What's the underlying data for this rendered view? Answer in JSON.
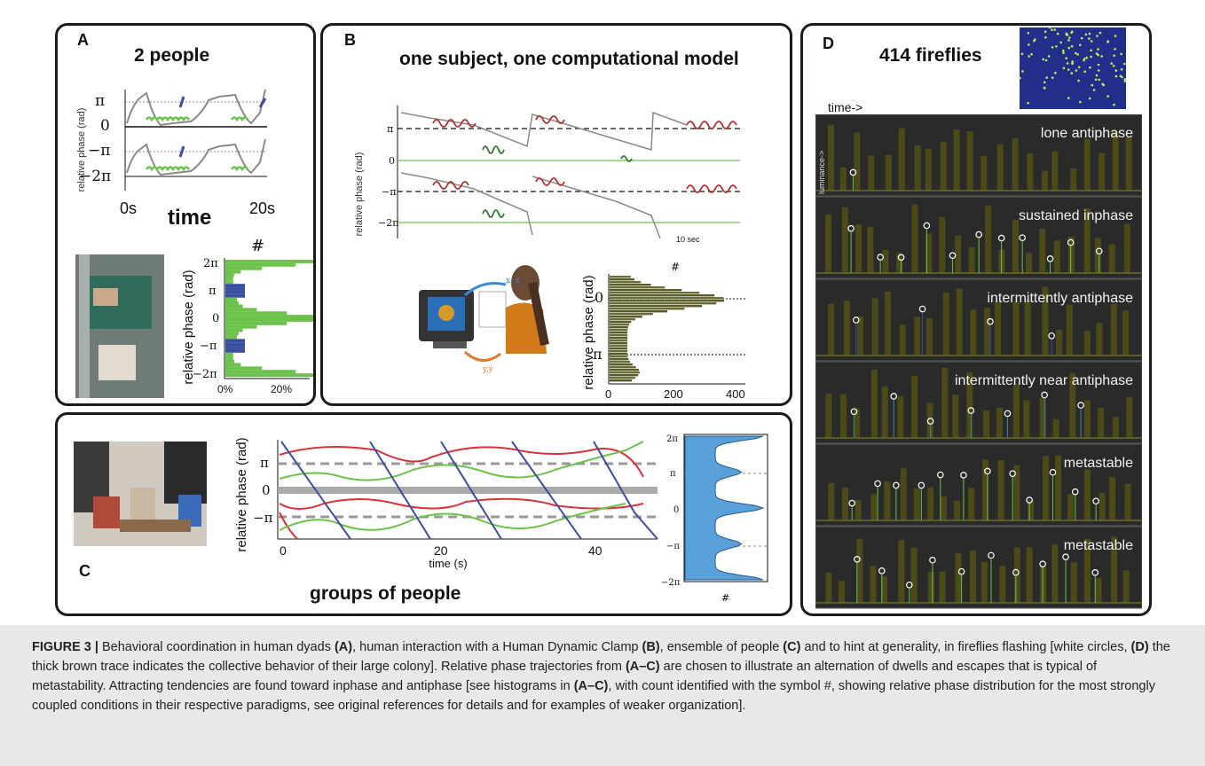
{
  "panels": {
    "A": {
      "letter": "A",
      "title": "2 people",
      "ylabel": "relative phase (rad)",
      "ticks": [
        "π",
        "0",
        "−π",
        "−2π"
      ],
      "x_start": "0s",
      "x_end": "20s",
      "xlabel": "time",
      "hist_count": "#",
      "hist_ylabel": "relative phase (rad)",
      "hist_yticks": [
        "2π",
        "π",
        "0",
        "−π",
        "−2π"
      ],
      "hist_xticks": [
        "0%",
        "20%"
      ]
    },
    "B": {
      "letter": "B",
      "title": "one subject, one computational model",
      "ylabel": "relative phase (rad)",
      "ticks": [
        "π",
        "0",
        "−π",
        "−2π"
      ],
      "scale": "10 sec",
      "motion_top": "x, ẋ",
      "motion_bottom": "y,ẏ",
      "hist_count": "#",
      "hist_ylabel": "relative phase (rad)",
      "hist_yticks": [
        "0",
        "π"
      ],
      "hist_xticks": [
        "0",
        "200",
        "400"
      ]
    },
    "C": {
      "letter": "C",
      "title": "groups of people",
      "ylabel": "relative phase (rad)",
      "ticks": [
        "π",
        "0",
        "−π"
      ],
      "xticks": [
        "0",
        "20",
        "40"
      ],
      "xlabel": "time (s)",
      "hist_count": "#",
      "hist_yticks": [
        "2π",
        "π",
        "0",
        "−π",
        "−2π"
      ]
    },
    "D": {
      "letter": "D",
      "title": "414 fireflies",
      "time_label": "time->",
      "luminance": "luminance->",
      "strips": [
        "lone antiphase",
        "sustained inphase",
        "intermittently antiphase",
        "intermittently near antiphase",
        "metastable",
        "metastable"
      ]
    }
  },
  "caption": {
    "label": "FIGURE 3 |",
    "parts": [
      {
        "t": " Behavioral coordination in human dyads ",
        "b": false
      },
      {
        "t": "(A)",
        "b": true
      },
      {
        "t": ", human interaction with a Human Dynamic Clamp ",
        "b": false
      },
      {
        "t": "(B)",
        "b": true
      },
      {
        "t": ", ensemble of people ",
        "b": false
      },
      {
        "t": "(C)",
        "b": true
      },
      {
        "t": " and to hint at generality, in fireflies flashing [white circles, ",
        "b": false
      },
      {
        "t": "(D)",
        "b": true
      },
      {
        "t": " the thick brown trace indicates the collective behavior of their large colony]. Relative phase trajectories from ",
        "b": false
      },
      {
        "t": "(A–C)",
        "b": true
      },
      {
        "t": " are chosen to illustrate an alternation of dwells and escapes that is typical of metastability. Attracting tendencies are found toward inphase and antiphase [see histograms in ",
        "b": false
      },
      {
        "t": "(A–C)",
        "b": true
      },
      {
        "t": ", with count identified with the symbol #, showing relative phase distribution for the most strongly coupled conditions in their respective paradigms, see original references for details and for examples of weaker organization].",
        "b": false
      }
    ]
  },
  "colors": {
    "green": "#6cc24a",
    "gray": "#8a8a8a",
    "red": "#b03030",
    "blue": "#3b4ea0",
    "darkgreen": "#2f7a2f",
    "hist_blue": "#5aa0d8",
    "firefly_bg": "#2a2a2a",
    "firefly_peak": "#4d4a1a"
  }
}
